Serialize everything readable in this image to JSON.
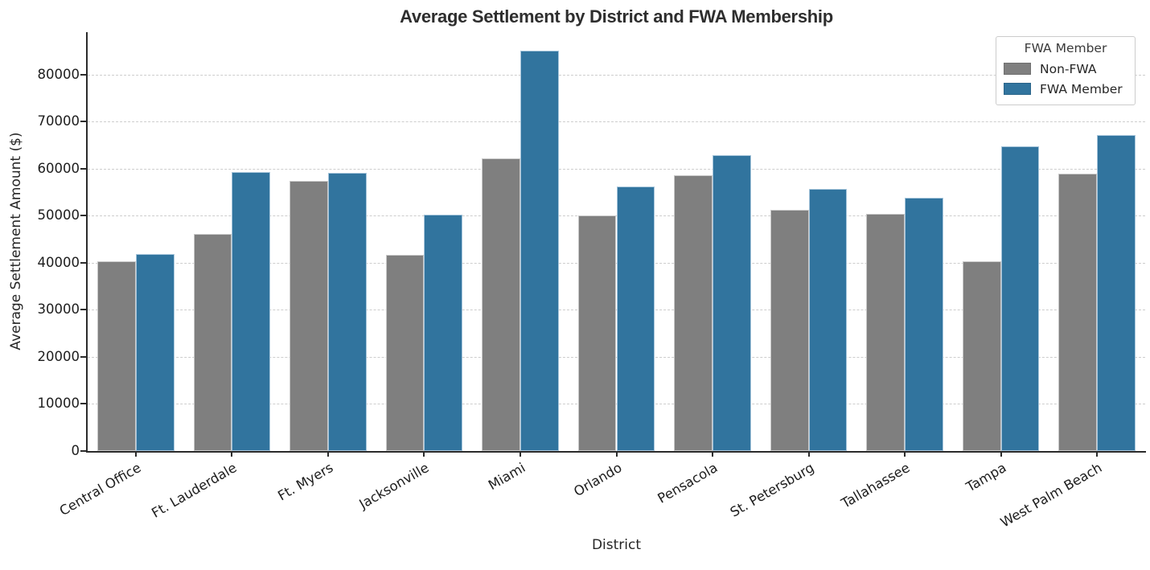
{
  "chart_data": {
    "type": "bar",
    "title": "Average Settlement by District and FWA Membership",
    "xlabel": "District",
    "ylabel": "Average Settlement Amount ($)",
    "categories": [
      "Central Office",
      "Ft. Lauderdale",
      "Ft. Myers",
      "Jacksonville",
      "Miami",
      "Orlando",
      "Pensacola",
      "St. Petersburg",
      "Tallahassee",
      "Tampa",
      "West Palm Beach"
    ],
    "series": [
      {
        "name": "Non-FWA",
        "color": "#7f7f7f",
        "edge_color": "#c9c9c9",
        "values": [
          40400,
          46200,
          57400,
          41600,
          62100,
          50000,
          58600,
          51200,
          50400,
          40400,
          59000
        ]
      },
      {
        "name": "FWA Member",
        "color": "#31749e",
        "edge_color": "#a6c5db",
        "values": [
          41900,
          59200,
          59100,
          50200,
          85000,
          56200,
          62800,
          55700,
          53800,
          64800,
          67200
        ]
      }
    ],
    "ylim": [
      0,
      89000
    ],
    "yticks": [
      0,
      10000,
      20000,
      30000,
      40000,
      50000,
      60000,
      70000,
      80000
    ],
    "grid": "horizontal-dashed",
    "legend": {
      "title": "FWA Member",
      "position": "upper-right"
    }
  },
  "colors": {
    "background": "#ffffff",
    "axis": "#2b2b2b",
    "grid": "#cdcdcd",
    "text": "#262626",
    "bar_gray": "#7f7f7f",
    "bar_blue": "#31749e",
    "legend_border": "#cccccc"
  }
}
